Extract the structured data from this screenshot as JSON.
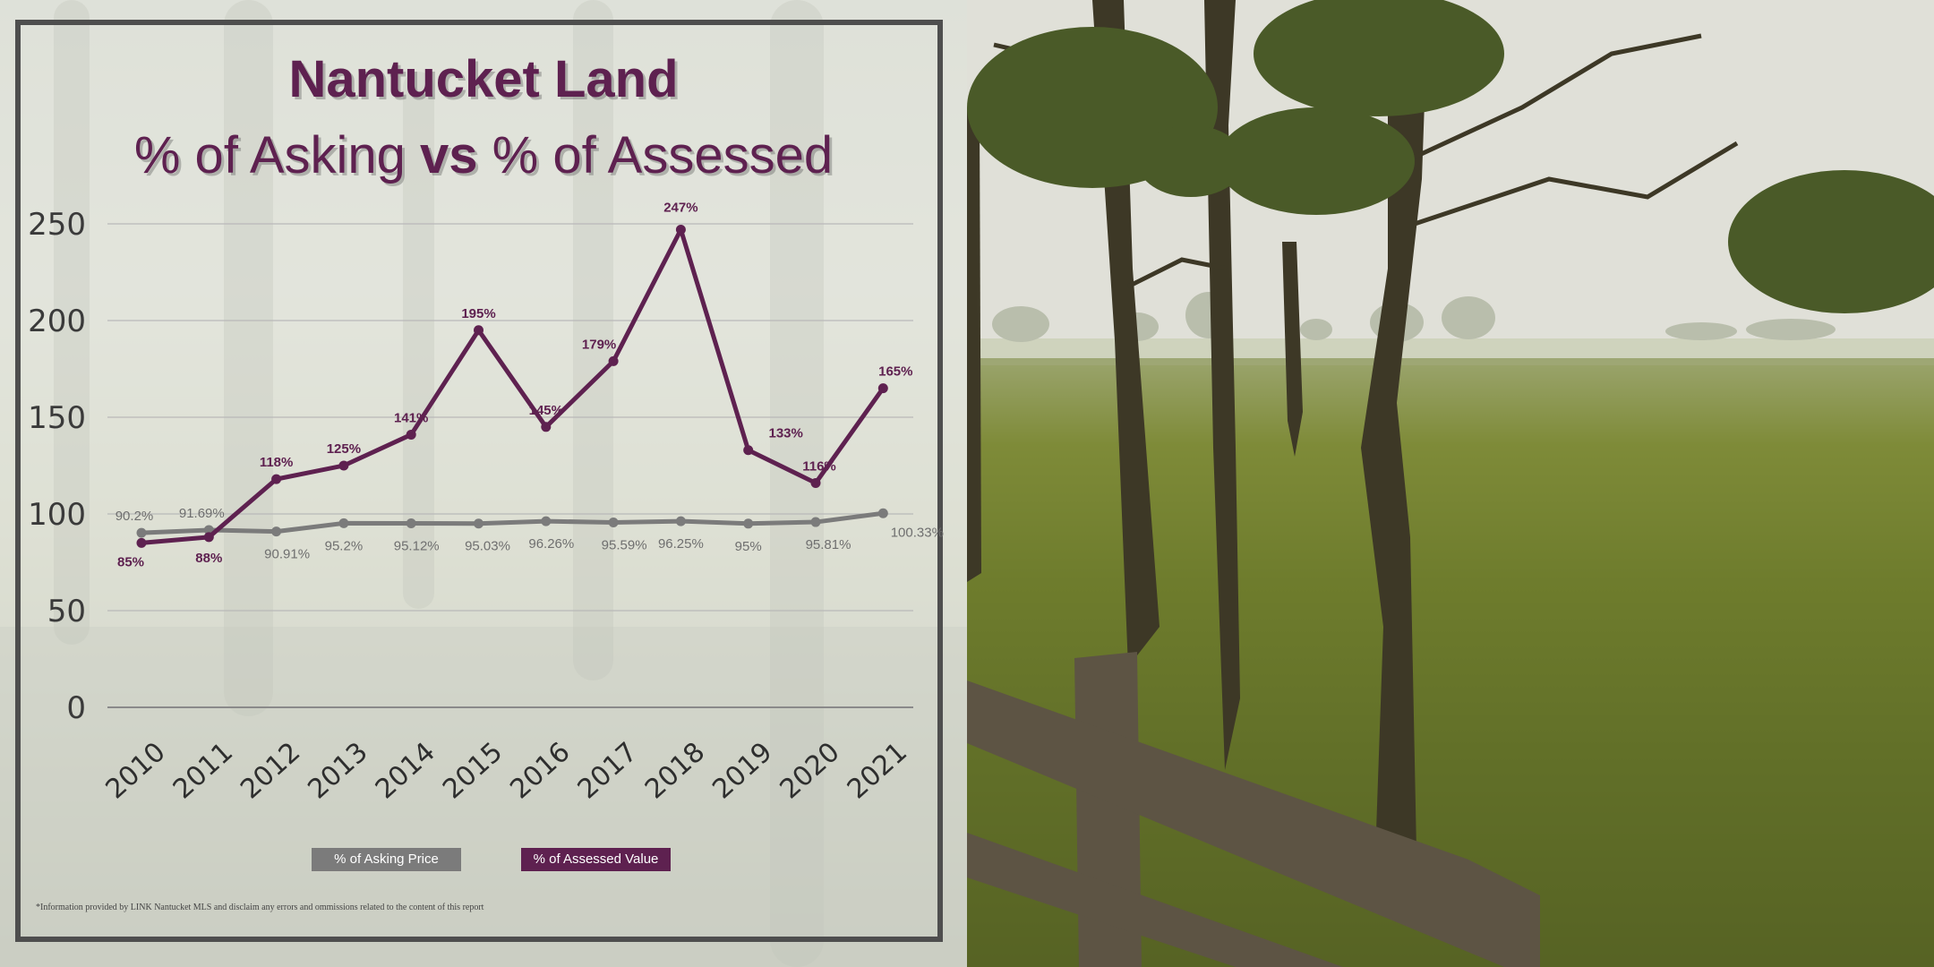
{
  "header": {
    "title": "Nantucket Land",
    "subtitle_part1": "% of Asking ",
    "subtitle_bold": "vs",
    "subtitle_part2": " % of Assessed"
  },
  "legend": {
    "asking": "% of Asking Price",
    "assessed": "% of Assessed Value"
  },
  "footnote": "*Information provided by LINK Nantucket MLS and disclaim any errors and ommissions related to the content of this report",
  "colors": {
    "title": "#5e2150",
    "assessed_line": "#5e2150",
    "asking_line": "#7b7b7b",
    "frame": "#4e4e4e"
  },
  "chart_data": {
    "type": "line",
    "categories": [
      "2010",
      "2011",
      "2012",
      "2013",
      "2014",
      "2015",
      "2016",
      "2017",
      "2018",
      "2019",
      "2020",
      "2021"
    ],
    "series": [
      {
        "name": "% of Asking Price",
        "values": [
          90.2,
          91.69,
          90.91,
          95.2,
          95.12,
          95.03,
          96.26,
          95.59,
          96.25,
          95,
          95.81,
          100.33
        ],
        "labels": [
          "90.2%",
          "91.69%",
          "90.91%",
          "95.2%",
          "95.12%",
          "95.03%",
          "96.26%",
          "95.59%",
          "96.25%",
          "95%",
          "95.81%",
          "100.33%"
        ]
      },
      {
        "name": "% of Assessed Value",
        "values": [
          85,
          88,
          118,
          125,
          141,
          195,
          145,
          179,
          247,
          133,
          116,
          165
        ],
        "labels": [
          "85%",
          "88%",
          "118%",
          "125%",
          "141%",
          "195%",
          "145%",
          "179%",
          "247%",
          "133%",
          "116%",
          "165%"
        ]
      }
    ],
    "y_ticks": [
      "0",
      "50",
      "100",
      "150",
      "200",
      "250"
    ],
    "ylim": [
      0,
      250
    ],
    "grid": true,
    "legend_position": "bottom"
  }
}
